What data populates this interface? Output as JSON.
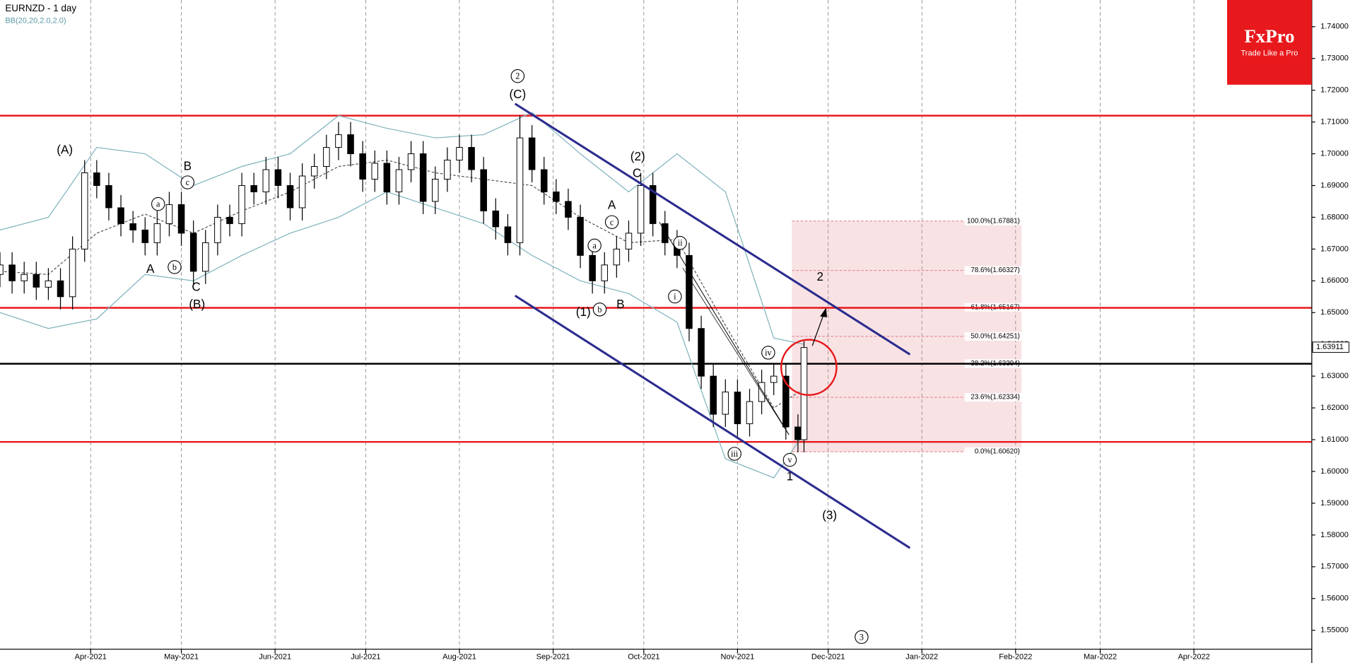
{
  "chart_data": {
    "type": "candlestick",
    "title": "EURNZD - 1 day",
    "subtitle": "BB(20,20,2.0,2.0)",
    "x": [
      "2021-03-02",
      "2021-03-06",
      "2021-03-10",
      "2021-03-14",
      "2021-03-18",
      "2021-03-22",
      "2021-03-26",
      "2021-03-30",
      "2021-04-03",
      "2021-04-07",
      "2021-04-11",
      "2021-04-15",
      "2021-04-19",
      "2021-04-23",
      "2021-04-27",
      "2021-05-01",
      "2021-05-05",
      "2021-05-09",
      "2021-05-13",
      "2021-05-17",
      "2021-05-21",
      "2021-05-25",
      "2021-05-29",
      "2021-06-02",
      "2021-06-06",
      "2021-06-10",
      "2021-06-14",
      "2021-06-18",
      "2021-06-22",
      "2021-06-26",
      "2021-06-30",
      "2021-07-04",
      "2021-07-08",
      "2021-07-12",
      "2021-07-16",
      "2021-07-20",
      "2021-07-24",
      "2021-07-28",
      "2021-08-01",
      "2021-08-05",
      "2021-08-09",
      "2021-08-13",
      "2021-08-17",
      "2021-08-21",
      "2021-08-25",
      "2021-08-29",
      "2021-09-02",
      "2021-09-06",
      "2021-09-10",
      "2021-09-14",
      "2021-09-18",
      "2021-09-22",
      "2021-09-26",
      "2021-09-30",
      "2021-10-04",
      "2021-10-08",
      "2021-10-12",
      "2021-10-16",
      "2021-10-20",
      "2021-10-24",
      "2021-10-28",
      "2021-11-01",
      "2021-11-05",
      "2021-11-09",
      "2021-11-13",
      "2021-11-17",
      "2021-11-21",
      "2021-11-23"
    ],
    "open": [
      1.662,
      1.665,
      1.66,
      1.662,
      1.658,
      1.66,
      1.655,
      1.67,
      1.694,
      1.69,
      1.683,
      1.678,
      1.676,
      1.672,
      1.678,
      1.684,
      1.675,
      1.663,
      1.672,
      1.68,
      1.678,
      1.69,
      1.688,
      1.695,
      1.69,
      1.683,
      1.693,
      1.696,
      1.702,
      1.706,
      1.7,
      1.692,
      1.697,
      1.688,
      1.695,
      1.7,
      1.685,
      1.692,
      1.698,
      1.702,
      1.695,
      1.682,
      1.677,
      1.672,
      1.705,
      1.695,
      1.688,
      1.685,
      1.68,
      1.668,
      1.66,
      1.665,
      1.67,
      1.675,
      1.69,
      1.678,
      1.672,
      1.668,
      1.645,
      1.63,
      1.618,
      1.625,
      1.615,
      1.622,
      1.628,
      1.63,
      1.614,
      1.61
    ],
    "high": [
      1.669,
      1.669,
      1.666,
      1.666,
      1.664,
      1.664,
      1.674,
      1.698,
      1.698,
      1.694,
      1.687,
      1.682,
      1.68,
      1.682,
      1.688,
      1.688,
      1.679,
      1.676,
      1.684,
      1.684,
      1.694,
      1.694,
      1.699,
      1.699,
      1.694,
      1.697,
      1.7,
      1.706,
      1.71,
      1.71,
      1.704,
      1.701,
      1.701,
      1.699,
      1.704,
      1.704,
      1.696,
      1.702,
      1.706,
      1.706,
      1.699,
      1.686,
      1.681,
      1.712,
      1.709,
      1.699,
      1.692,
      1.689,
      1.684,
      1.672,
      1.669,
      1.674,
      1.679,
      1.694,
      1.694,
      1.682,
      1.676,
      1.672,
      1.649,
      1.634,
      1.629,
      1.629,
      1.626,
      1.632,
      1.634,
      1.634,
      1.618,
      1.641
    ],
    "low": [
      1.658,
      1.656,
      1.656,
      1.654,
      1.654,
      1.651,
      1.651,
      1.666,
      1.686,
      1.679,
      1.674,
      1.672,
      1.668,
      1.668,
      1.674,
      1.671,
      1.659,
      1.659,
      1.668,
      1.674,
      1.674,
      1.684,
      1.684,
      1.686,
      1.679,
      1.679,
      1.689,
      1.692,
      1.698,
      1.696,
      1.688,
      1.688,
      1.684,
      1.684,
      1.691,
      1.681,
      1.681,
      1.688,
      1.694,
      1.691,
      1.678,
      1.673,
      1.668,
      1.668,
      1.691,
      1.684,
      1.681,
      1.676,
      1.664,
      1.656,
      1.656,
      1.661,
      1.666,
      1.671,
      1.674,
      1.668,
      1.664,
      1.641,
      1.626,
      1.614,
      1.614,
      1.611,
      1.611,
      1.618,
      1.624,
      1.61,
      1.606,
      1.606
    ],
    "close": [
      1.665,
      1.66,
      1.662,
      1.658,
      1.66,
      1.655,
      1.67,
      1.694,
      1.69,
      1.683,
      1.678,
      1.676,
      1.672,
      1.678,
      1.684,
      1.675,
      1.663,
      1.672,
      1.68,
      1.678,
      1.69,
      1.688,
      1.695,
      1.69,
      1.683,
      1.693,
      1.696,
      1.702,
      1.706,
      1.7,
      1.692,
      1.697,
      1.688,
      1.695,
      1.7,
      1.685,
      1.692,
      1.698,
      1.702,
      1.695,
      1.682,
      1.677,
      1.672,
      1.705,
      1.695,
      1.688,
      1.685,
      1.68,
      1.668,
      1.66,
      1.665,
      1.67,
      1.675,
      1.69,
      1.678,
      1.672,
      1.668,
      1.645,
      1.63,
      1.618,
      1.625,
      1.615,
      1.622,
      1.628,
      1.63,
      1.614,
      1.61,
      1.639
    ],
    "bands": {
      "x": [
        "2021-03-02",
        "2021-03-18",
        "2021-04-03",
        "2021-04-19",
        "2021-05-05",
        "2021-05-21",
        "2021-06-06",
        "2021-06-22",
        "2021-07-08",
        "2021-07-24",
        "2021-08-09",
        "2021-08-25",
        "2021-09-10",
        "2021-09-26",
        "2021-10-12",
        "2021-10-28",
        "2021-11-13",
        "2021-11-23"
      ],
      "upper": [
        1.676,
        1.68,
        1.702,
        1.7,
        1.69,
        1.696,
        1.7,
        1.712,
        1.708,
        1.705,
        1.706,
        1.713,
        1.7,
        1.688,
        1.7,
        1.688,
        1.642,
        1.64
      ],
      "middle": [
        1.663,
        1.662,
        1.675,
        1.681,
        1.675,
        1.682,
        1.688,
        1.696,
        1.698,
        1.694,
        1.692,
        1.69,
        1.68,
        1.672,
        1.673,
        1.646,
        1.62,
        1.626
      ],
      "lower": [
        1.65,
        1.645,
        1.648,
        1.662,
        1.66,
        1.668,
        1.675,
        1.68,
        1.688,
        1.683,
        1.678,
        1.668,
        1.66,
        1.656,
        1.647,
        1.604,
        1.598,
        1.612
      ],
      "color": "#7fb3bd"
    },
    "levels": [
      {
        "value": 1.712,
        "color": "#e8191c"
      },
      {
        "value": 1.6515,
        "color": "#e8191c"
      },
      {
        "value": 1.6093,
        "color": "#e8191c"
      },
      {
        "value": 1.6339,
        "color": "#000000"
      }
    ],
    "current_price": 1.63911,
    "fib": {
      "start": "2021-11-19",
      "end": "2022-02-03",
      "color": "#e07a83",
      "levels": [
        {
          "value": 1.67881,
          "label": "100.0%(1.67881)"
        },
        {
          "value": 1.66327,
          "label": "78.6%(1.66327)"
        },
        {
          "value": 1.65167,
          "label": "61.8%(1.65167)"
        },
        {
          "value": 1.64251,
          "label": "50.0%(1.64251)"
        },
        {
          "value": 1.63394,
          "label": "38.2%(1.63394)"
        },
        {
          "value": 1.62334,
          "label": "23.6%(1.62334)"
        },
        {
          "value": 1.6062,
          "label": "0.0%(1.60620)"
        }
      ]
    },
    "wave_labels": [
      {
        "text": "(A)"
      },
      {
        "text": "B"
      },
      {
        "text": "c",
        "circled": true
      },
      {
        "text": "a",
        "circled": true
      },
      {
        "text": "b",
        "circled": true
      },
      {
        "text": "A"
      },
      {
        "text": "C"
      },
      {
        "text": "(B)"
      },
      {
        "text": "2",
        "circled": true
      },
      {
        "text": "(C)"
      },
      {
        "text": "(2)"
      },
      {
        "text": "C"
      },
      {
        "text": "A"
      },
      {
        "text": "c",
        "circled": true
      },
      {
        "text": "a",
        "circled": true
      },
      {
        "text": "b",
        "circled": true
      },
      {
        "text": "(1)"
      },
      {
        "text": "B"
      },
      {
        "text": "ii",
        "circled": true
      },
      {
        "text": "i",
        "circled": true
      },
      {
        "text": "iv",
        "circled": true
      },
      {
        "text": "iii",
        "circled": true
      },
      {
        "text": "v",
        "circled": true
      },
      {
        "text": "1"
      },
      {
        "text": "2"
      },
      {
        "text": "(3)"
      },
      {
        "text": "3",
        "circled": true
      }
    ],
    "xlim": [
      "2021-03-02",
      "2022-05-10"
    ],
    "xticks": [
      {
        "value": "2021-04-01",
        "label": "Apr-2021"
      },
      {
        "value": "2021-05-01",
        "label": "May-2021"
      },
      {
        "value": "2021-06-01",
        "label": "Jun-2021"
      },
      {
        "value": "2021-07-01",
        "label": "Jul-2021"
      },
      {
        "value": "2021-08-01",
        "label": "Aug-2021"
      },
      {
        "value": "2021-09-01",
        "label": "Sep-2021"
      },
      {
        "value": "2021-10-01",
        "label": "Oct-2021"
      },
      {
        "value": "2021-11-01",
        "label": "Nov-2021"
      },
      {
        "value": "2021-12-01",
        "label": "Dec-2021"
      },
      {
        "value": "2022-01-01",
        "label": "Jan-2022"
      },
      {
        "value": "2022-02-01",
        "label": "Feb-2022"
      },
      {
        "value": "2022-03-01",
        "label": "Mar-2022"
      },
      {
        "value": "2022-04-01",
        "label": "Apr-2022"
      }
    ],
    "ylim": [
      1.5397,
      1.7484
    ],
    "yticks": [
      {
        "value": 1.74,
        "label": "1.74000"
      },
      {
        "value": 1.73,
        "label": "1.73000"
      },
      {
        "value": 1.72,
        "label": "1.72000"
      },
      {
        "value": 1.71,
        "label": "1.71000"
      },
      {
        "value": 1.7,
        "label": "1.70000"
      },
      {
        "value": 1.69,
        "label": "1.69000"
      },
      {
        "value": 1.68,
        "label": "1.68000"
      },
      {
        "value": 1.67,
        "label": "1.67000"
      },
      {
        "value": 1.66,
        "label": "1.66000"
      },
      {
        "value": 1.65,
        "label": "1.65000"
      },
      {
        "value": 1.64,
        "label": "1.64000"
      },
      {
        "value": 1.63,
        "label": "1.63000"
      },
      {
        "value": 1.62,
        "label": "1.62000"
      },
      {
        "value": 1.61,
        "label": "1.61000"
      },
      {
        "value": 1.6,
        "label": "1.60000"
      },
      {
        "value": 1.59,
        "label": "1.59000"
      },
      {
        "value": 1.58,
        "label": "1.58000"
      },
      {
        "value": 1.57,
        "label": "1.57000"
      },
      {
        "value": 1.56,
        "label": "1.56000"
      },
      {
        "value": 1.55,
        "label": "1.55000"
      }
    ],
    "grid": true
  },
  "logo": {
    "brand": "FxPro",
    "tagline": "Trade Like a Pro"
  }
}
